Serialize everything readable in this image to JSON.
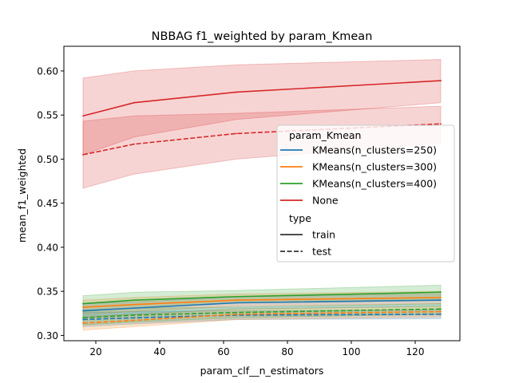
{
  "chart_data": {
    "type": "line",
    "title": "NBBAG f1_weighted by param_Kmean",
    "xlabel": "param_clf__n_estimators",
    "ylabel": "mean_f1_weighted",
    "xlim": [
      10,
      134
    ],
    "ylim": [
      0.294,
      0.628
    ],
    "xticks": [
      20,
      40,
      60,
      80,
      100,
      120
    ],
    "yticks": [
      0.3,
      0.35,
      0.4,
      0.45,
      0.5,
      0.55,
      0.6
    ],
    "ytick_labels": [
      "0.30",
      "0.35",
      "0.40",
      "0.45",
      "0.50",
      "0.55",
      "0.60"
    ],
    "x": [
      16,
      32,
      64,
      128
    ],
    "legend": {
      "position": "center-right",
      "hue_title": "param_Kmean",
      "style_title": "type",
      "style_entries": [
        {
          "label": "train",
          "dash": "solid"
        },
        {
          "label": "test",
          "dash": "dashed"
        }
      ]
    },
    "series": [
      {
        "name": "KMeans(n_clusters=250)",
        "color": "#1f77b4",
        "train": {
          "values": [
            0.328,
            0.331,
            0.337,
            0.34
          ],
          "lower": [
            0.32,
            0.324,
            0.33,
            0.333
          ],
          "upper": [
            0.336,
            0.338,
            0.344,
            0.347
          ]
        },
        "test": {
          "values": [
            0.318,
            0.32,
            0.323,
            0.324
          ],
          "lower": [
            0.31,
            0.313,
            0.318,
            0.319
          ],
          "upper": [
            0.326,
            0.327,
            0.328,
            0.329
          ]
        }
      },
      {
        "name": "KMeans(n_clusters=300)",
        "color": "#ff7f0e",
        "train": {
          "values": [
            0.332,
            0.335,
            0.34,
            0.343
          ],
          "lower": [
            0.324,
            0.327,
            0.333,
            0.336
          ],
          "upper": [
            0.34,
            0.343,
            0.347,
            0.35
          ]
        },
        "test": {
          "values": [
            0.314,
            0.317,
            0.324,
            0.327
          ],
          "lower": [
            0.306,
            0.31,
            0.318,
            0.321
          ],
          "upper": [
            0.322,
            0.324,
            0.33,
            0.333
          ]
        }
      },
      {
        "name": "KMeans(n_clusters=400)",
        "color": "#2ca02c",
        "train": {
          "values": [
            0.336,
            0.34,
            0.344,
            0.349
          ],
          "lower": [
            0.327,
            0.331,
            0.337,
            0.341
          ],
          "upper": [
            0.345,
            0.349,
            0.351,
            0.357
          ]
        },
        "test": {
          "values": [
            0.32,
            0.323,
            0.326,
            0.33
          ],
          "lower": [
            0.312,
            0.315,
            0.32,
            0.324
          ],
          "upper": [
            0.328,
            0.331,
            0.332,
            0.336
          ]
        }
      },
      {
        "name": "None",
        "color": "#d62728",
        "train": {
          "values": [
            0.549,
            0.564,
            0.576,
            0.589
          ],
          "lower": [
            0.505,
            0.525,
            0.545,
            0.564
          ],
          "upper": [
            0.592,
            0.6,
            0.607,
            0.613
          ]
        },
        "test": {
          "values": [
            0.505,
            0.517,
            0.529,
            0.54
          ],
          "lower": [
            0.467,
            0.483,
            0.5,
            0.518
          ],
          "upper": [
            0.543,
            0.549,
            0.552,
            0.56
          ]
        }
      }
    ]
  }
}
